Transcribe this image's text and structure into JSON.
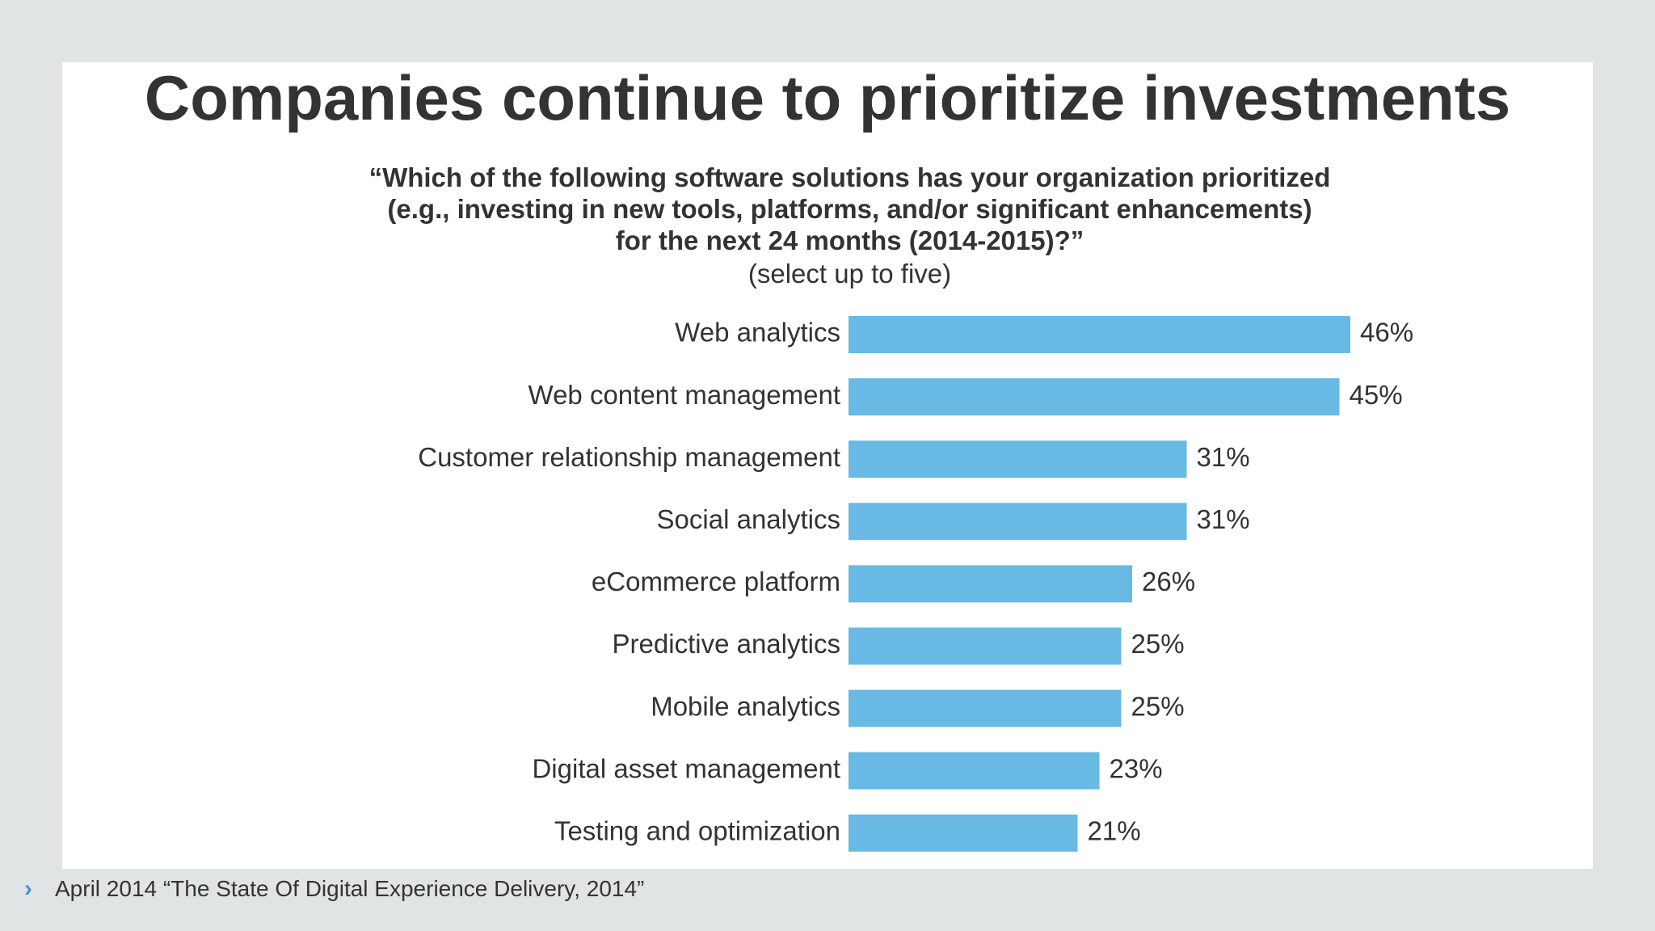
{
  "slide": {
    "title": "Companies continue to prioritize investments",
    "subtitle_lines": [
      "“Which of the following software solutions has your organization prioritized",
      "(e.g., investing in new tools, platforms, and/or significant enhancements)",
      "for the next 24 months (2014-2015)?”"
    ],
    "subtitle_note": "(select up to five)",
    "footer": "April 2014 “The State Of Digital Experience Delivery, 2014”",
    "colors": {
      "bar": "#68b9e3",
      "text": "#333333",
      "background": "#e1e4e5",
      "panel": "#ffffff",
      "accent": "#3a9bd6"
    }
  },
  "chart_data": {
    "type": "bar",
    "orientation": "horizontal",
    "categories": [
      "Web analytics",
      "Web content management",
      "Customer relationship management",
      "Social analytics",
      "eCommerce platform",
      "Predictive analytics",
      "Mobile analytics",
      "Digital asset management",
      "Testing and optimization"
    ],
    "values": [
      46,
      45,
      31,
      31,
      26,
      25,
      25,
      23,
      21
    ],
    "data_labels": [
      "46%",
      "45%",
      "31%",
      "31%",
      "26%",
      "25%",
      "25%",
      "23%",
      "21%"
    ],
    "unit": "%",
    "xlim": [
      0,
      46
    ],
    "grid": false,
    "legend": "none"
  }
}
